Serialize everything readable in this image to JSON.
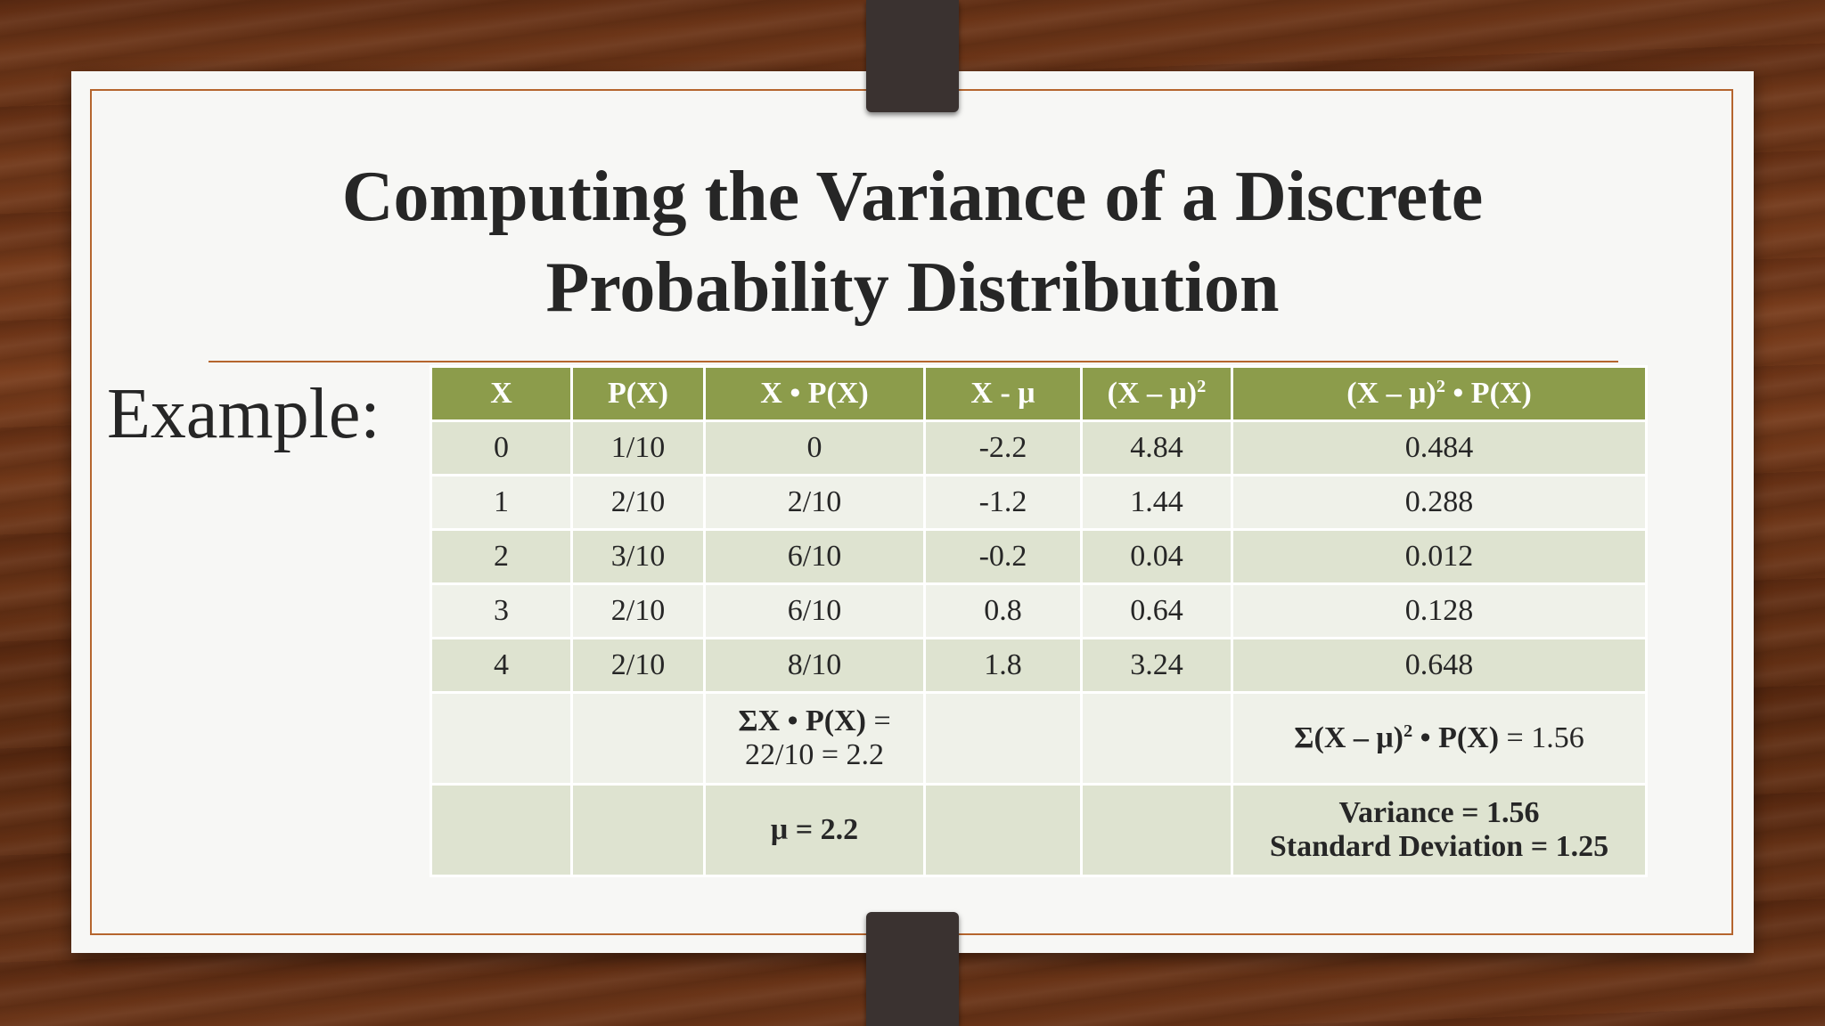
{
  "slide": {
    "title_line1": "Computing the Variance of  a Discrete",
    "title_line2": "Probability Distribution",
    "example_label": "Example:"
  },
  "table": {
    "headers": {
      "x": "X",
      "px": "P(X)",
      "xpx": "X • P(X)",
      "xmu": "X - μ",
      "sq_base": "(X – μ)",
      "sq_exp": "2",
      "sqpx_base": "(X – μ)",
      "sqpx_exp": "2",
      "sqpx_tail": " • P(X)"
    },
    "rows": [
      {
        "x": "0",
        "px": "1/10",
        "xpx": "0",
        "xmu": "-2.2",
        "sq": "4.84",
        "sqpx": "0.484"
      },
      {
        "x": "1",
        "px": "2/10",
        "xpx": "2/10",
        "xmu": "-1.2",
        "sq": "1.44",
        "sqpx": "0.288"
      },
      {
        "x": "2",
        "px": "3/10",
        "xpx": "6/10",
        "xmu": "-0.2",
        "sq": "0.04",
        "sqpx": "0.012"
      },
      {
        "x": "3",
        "px": "2/10",
        "xpx": "6/10",
        "xmu": "0.8",
        "sq": "0.64",
        "sqpx": "0.128"
      },
      {
        "x": "4",
        "px": "2/10",
        "xpx": "8/10",
        "xmu": "1.8",
        "sq": "3.24",
        "sqpx": "0.648"
      }
    ],
    "sum_row": {
      "mean_sum_label": "ΣX • P(X)",
      "mean_sum_eq": " =",
      "mean_sum_value": "22/10 = 2.2",
      "var_sum_base": "Σ(X – μ)",
      "var_sum_exp": "2",
      "var_sum_tail": " • P(X)",
      "var_sum_value": " = 1.56"
    },
    "result_row": {
      "mu": "μ = 2.2",
      "variance": "Variance = 1.56",
      "std_dev": "Standard Deviation = 1.25"
    }
  }
}
